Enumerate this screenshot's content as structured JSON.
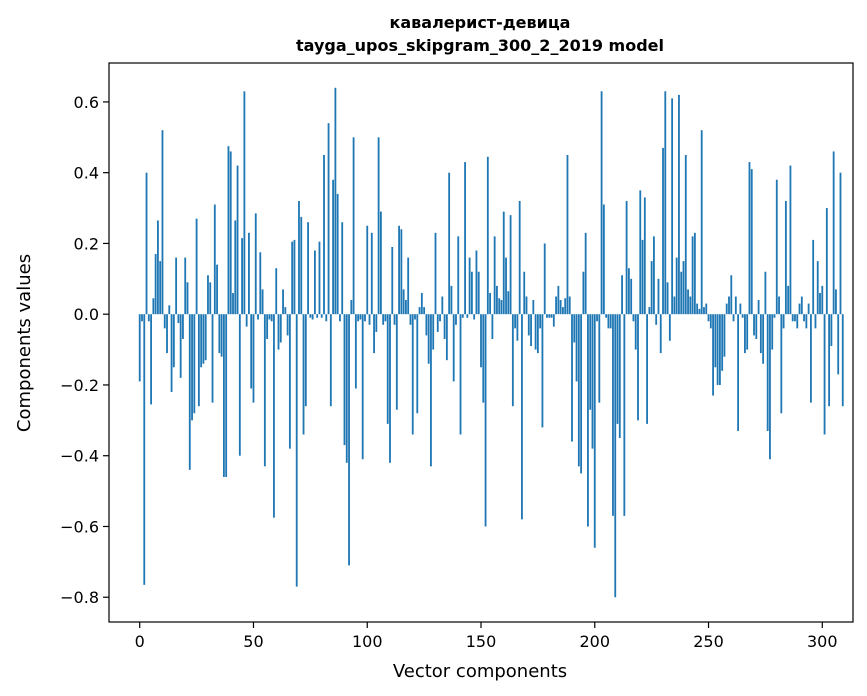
{
  "chart_data": {
    "type": "bar",
    "title": "кавалерист-девица",
    "subtitle": "tayga_upos_skipgram_300_2_2019 model",
    "xlabel": "Vector components",
    "ylabel": "Components values",
    "xlim": [
      -13.5,
      313.5
    ],
    "ylim": [
      -0.87,
      0.71
    ],
    "xticks": [
      0,
      50,
      100,
      150,
      200,
      250,
      300
    ],
    "yticks": [
      -0.8,
      -0.6,
      -0.4,
      -0.2,
      0.0,
      0.2,
      0.4,
      0.6
    ],
    "grid": false,
    "bar_color": "#1f77b4",
    "values": [
      -0.19,
      -0.02,
      -0.765,
      0.4,
      -0.02,
      -0.255,
      0.045,
      0.17,
      0.265,
      0.15,
      0.52,
      -0.04,
      -0.11,
      0.025,
      -0.22,
      -0.15,
      0.16,
      -0.025,
      -0.18,
      -0.07,
      0.16,
      0.09,
      -0.44,
      -0.3,
      -0.28,
      0.27,
      -0.26,
      -0.15,
      -0.14,
      -0.13,
      0.11,
      0.09,
      -0.25,
      0.31,
      0.14,
      -0.11,
      -0.12,
      -0.46,
      -0.46,
      0.475,
      0.46,
      0.06,
      0.265,
      0.42,
      -0.4,
      0.215,
      0.63,
      -0.035,
      0.23,
      -0.21,
      -0.25,
      0.285,
      -0.015,
      0.175,
      0.07,
      -0.43,
      -0.07,
      -0.015,
      -0.02,
      -0.575,
      0.13,
      -0.1,
      -0.08,
      0.07,
      0.02,
      -0.06,
      -0.38,
      0.205,
      0.21,
      -0.77,
      0.32,
      0.275,
      -0.34,
      -0.26,
      0.26,
      -0.01,
      -0.015,
      0.18,
      -0.01,
      0.205,
      -0.01,
      0.45,
      -0.02,
      0.54,
      -0.26,
      0.38,
      0.64,
      0.34,
      -0.02,
      0.26,
      -0.37,
      -0.42,
      -0.71,
      0.04,
      0.5,
      -0.21,
      -0.02,
      -0.015,
      -0.41,
      -0.02,
      0.25,
      -0.03,
      0.23,
      -0.11,
      -0.05,
      0.5,
      0.29,
      -0.03,
      -0.02,
      -0.31,
      -0.42,
      0.19,
      -0.03,
      -0.27,
      0.25,
      0.24,
      0.07,
      0.04,
      0.16,
      -0.03,
      -0.34,
      -0.015,
      -0.28,
      0.02,
      0.06,
      0.02,
      -0.06,
      -0.14,
      -0.43,
      -0.1,
      0.23,
      -0.05,
      -0.02,
      0.05,
      -0.07,
      -0.13,
      0.4,
      0.08,
      -0.19,
      -0.03,
      0.22,
      -0.34,
      -0.01,
      0.43,
      -0.01,
      0.16,
      0.12,
      -0.015,
      0.18,
      0.12,
      -0.15,
      -0.25,
      -0.6,
      0.445,
      0.06,
      -0.07,
      0.22,
      0.08,
      0.045,
      0.04,
      0.29,
      0.16,
      0.065,
      0.28,
      -0.26,
      -0.04,
      -0.075,
      0.32,
      -0.58,
      0.12,
      0.05,
      -0.06,
      -0.09,
      0.04,
      -0.1,
      -0.11,
      -0.04,
      -0.32,
      0.2,
      -0.01,
      -0.01,
      -0.01,
      -0.035,
      0.05,
      0.08,
      0.04,
      0.02,
      0.045,
      0.45,
      0.05,
      -0.36,
      -0.08,
      -0.19,
      -0.43,
      -0.45,
      0.12,
      0.23,
      -0.6,
      -0.27,
      -0.38,
      -0.66,
      -0.02,
      -0.25,
      0.63,
      0.31,
      -0.01,
      -0.04,
      -0.04,
      -0.57,
      -0.8,
      -0.31,
      -0.35,
      0.11,
      -0.57,
      0.32,
      0.13,
      0.1,
      -0.02,
      -0.1,
      -0.3,
      0.35,
      0.21,
      0.33,
      -0.31,
      0.02,
      0.15,
      0.22,
      -0.03,
      0.1,
      -0.11,
      0.47,
      0.63,
      0.09,
      -0.075,
      0.61,
      0.05,
      0.16,
      0.62,
      0.12,
      0.15,
      0.45,
      0.07,
      0.05,
      0.22,
      0.23,
      0.03,
      0.015,
      0.52,
      0.02,
      0.03,
      -0.02,
      -0.04,
      -0.23,
      -0.15,
      -0.2,
      -0.2,
      -0.16,
      -0.12,
      0.03,
      0.05,
      0.11,
      -0.02,
      0.05,
      -0.33,
      0.03,
      -0.01,
      -0.11,
      -0.1,
      0.43,
      0.41,
      -0.06,
      -0.07,
      0.04,
      -0.11,
      -0.14,
      0.12,
      -0.33,
      -0.41,
      -0.1,
      -0.01,
      0.38,
      0.05,
      -0.28,
      -0.04,
      0.32,
      0.08,
      0.42,
      -0.02,
      -0.02,
      -0.04,
      0.03,
      0.05,
      -0.02,
      -0.04,
      0.03,
      -0.25,
      0.21,
      -0.04,
      0.15,
      0.06,
      0.08,
      -0.34,
      0.3,
      -0.26,
      -0.09,
      0.46,
      0.07,
      -0.17,
      0.4,
      -0.26
    ]
  }
}
